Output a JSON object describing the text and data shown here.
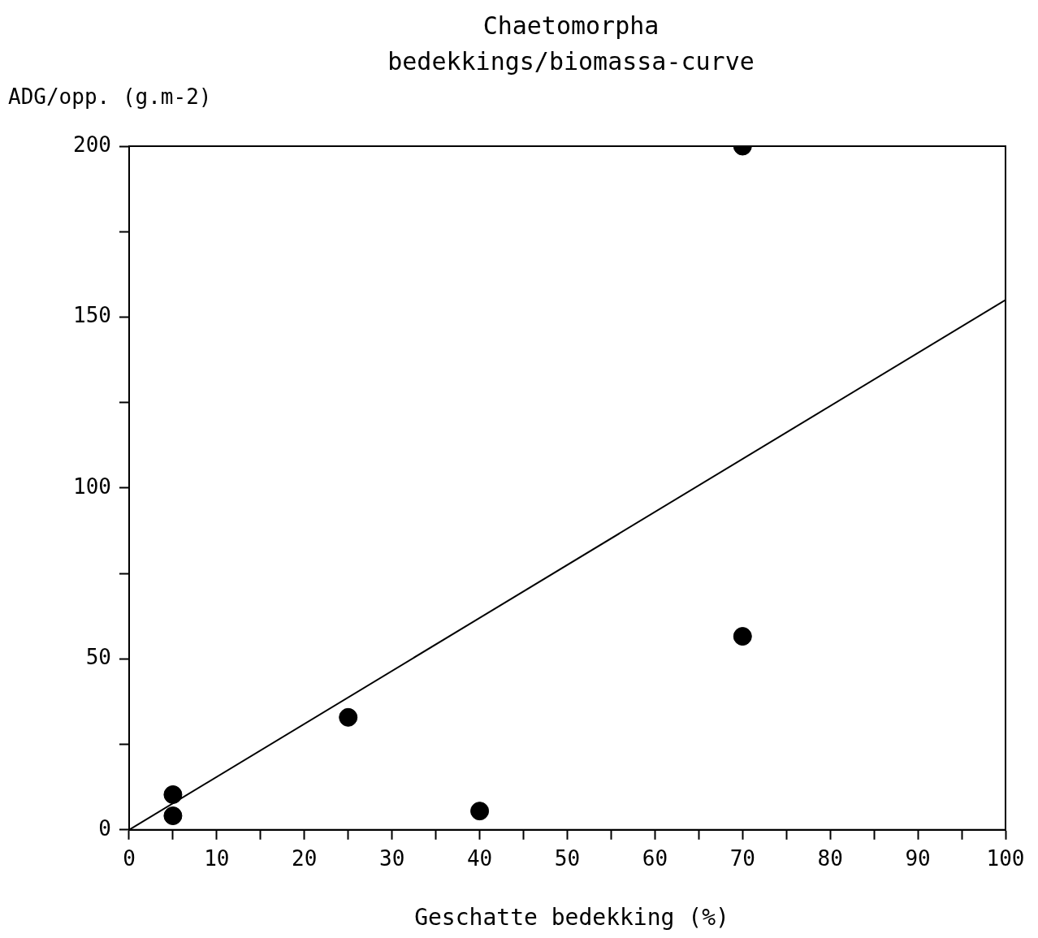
{
  "chart_data": {
    "type": "scatter",
    "title": "Chaetomorpha\nbedekkings/biomassa-curve",
    "xlabel": "Geschatte bedekking (%)",
    "ylabel": "ADG/opp. (g.m-2)",
    "xlim": [
      0,
      100
    ],
    "xticks": [
      0,
      {
        "value": 5,
        "label": null
      },
      10,
      {
        "value": 15,
        "label": null
      },
      20,
      {
        "value": 25,
        "label": null
      },
      30,
      {
        "value": 35,
        "label": null
      },
      40,
      {
        "value": 45,
        "label": null
      },
      50,
      {
        "value": 55,
        "label": null
      },
      60,
      {
        "value": 65,
        "label": null
      },
      70,
      {
        "value": 75,
        "label": null
      },
      80,
      {
        "value": 85,
        "label": null
      },
      90,
      {
        "value": 95,
        "label": null
      },
      100
    ],
    "ylim": [
      0,
      200
    ],
    "yticks": [
      0,
      {
        "value": 25,
        "label": null
      },
      50,
      {
        "value": 75,
        "label": null
      },
      100,
      {
        "value": 125,
        "label": null
      },
      150,
      {
        "value": 175,
        "label": null
      },
      200
    ],
    "grid": false,
    "legend": false,
    "marker": "circle",
    "series": [
      {
        "type": "scatter",
        "color": "#000000",
        "x": [
          5,
          5,
          25,
          40,
          70,
          70
        ],
        "values": [
          10.3,
          4.1,
          32.9,
          5.5,
          56.6,
          200
        ]
      },
      {
        "type": "line",
        "color": "#000000",
        "line_style": "solid",
        "marker": "none",
        "x": [
          0,
          100
        ],
        "values": [
          0,
          155
        ]
      }
    ]
  }
}
